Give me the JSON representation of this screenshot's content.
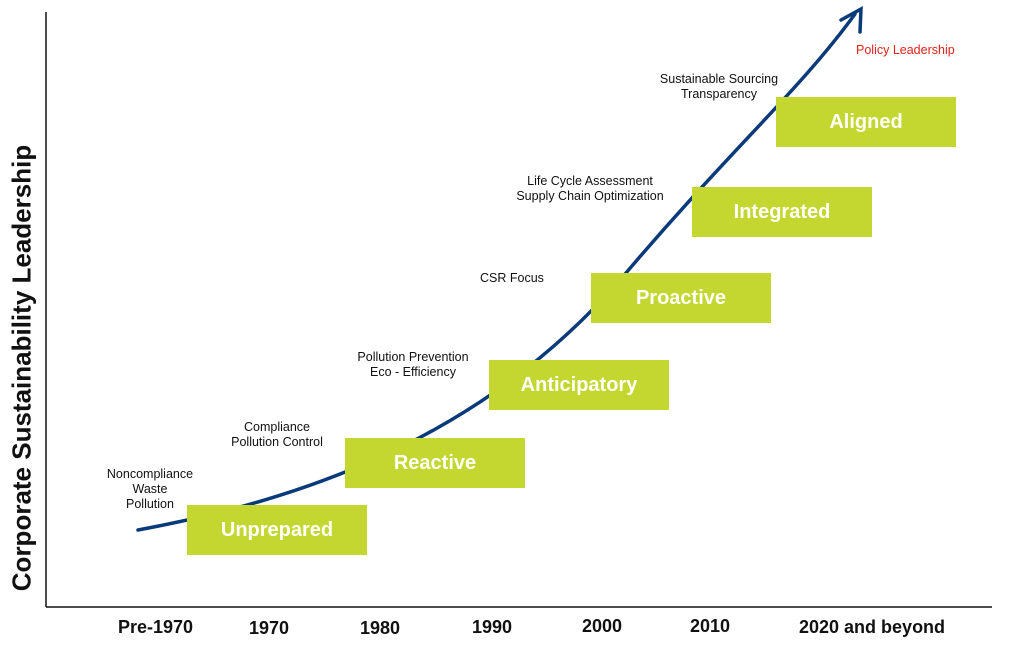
{
  "y_axis_label": "Corporate Sustainability Leadership",
  "x_ticks": [
    "Pre-1970",
    "1970",
    "1980",
    "1990",
    "2000",
    "2010",
    "2020 and beyond"
  ],
  "stages": [
    "Unprepared",
    "Reactive",
    "Anticipatory",
    "Proactive",
    "Integrated",
    "Aligned"
  ],
  "annotations": {
    "noncompliance": [
      "Noncompliance",
      "Waste",
      "Pollution"
    ],
    "compliance": [
      "Compliance",
      "Pollution Control"
    ],
    "pollution_prevention": [
      "Pollution Prevention",
      "Eco - Efficiency"
    ],
    "csr": [
      "CSR Focus"
    ],
    "lifecycle": [
      "Life Cycle Assessment",
      "Supply Chain Optimization"
    ],
    "sourcing": [
      "Sustainable Sourcing",
      "Transparency"
    ],
    "policy": "Policy Leadership"
  },
  "colors": {
    "stage_box": "#c3d730",
    "curve": "#0a3a7a",
    "policy_text": "#e2231a",
    "axis": "#111111"
  }
}
